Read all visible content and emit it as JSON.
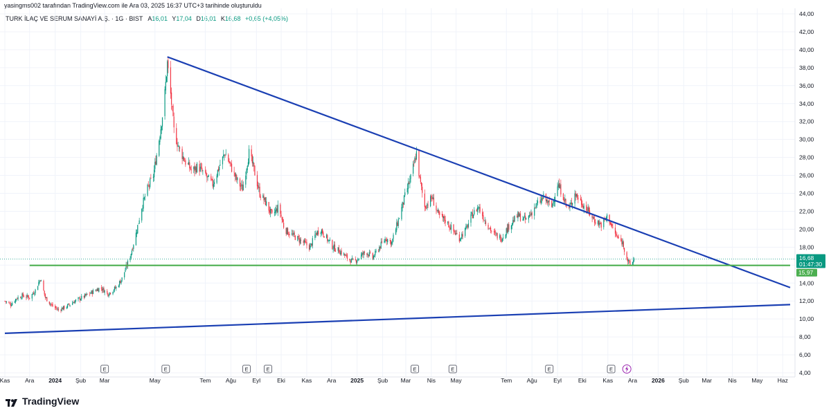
{
  "header": {
    "attribution": "yasingms002 tarafından TradingView.com ile Ara 03, 2025 16:37 UTC+3 tarihinde oluşturuldu",
    "symbol": "TURK İLAÇ VE SERUM SANAYİ A.Ş. · 1G · BIST",
    "open_label": "A",
    "open_value": "16,01",
    "high_label": "Y",
    "high_value": "17,04",
    "low_label": "D",
    "low_value": "16,01",
    "close_label": "K",
    "close_value": "16,68",
    "change": "+0,65 (+4,05%)"
  },
  "logo": {
    "text": "TradingView"
  },
  "colors": {
    "up": "#089981",
    "down": "#f23645",
    "trend": "#1a3fb3",
    "support": "#4caf50",
    "grid": "#f0f3fa"
  },
  "price_tags": {
    "last_price": "16,68",
    "countdown": "01:47:30",
    "support_price": "15,97"
  },
  "event_markers": {
    "earnings_label": "E",
    "earnings_dates": [
      "2024-03-01",
      "2024-05-14",
      "2024-08-20",
      "2024-09-15",
      "2025-03-12",
      "2025-04-27",
      "2025-08-22",
      "2025-11-05"
    ],
    "dividend_icon": "lightning-icon",
    "dividend_date": "2025-11-24"
  },
  "chart_data": {
    "type": "candlestick",
    "yaxis": {
      "ylim": [
        4,
        44
      ],
      "tick_labels": [
        "4,00",
        "6,00",
        "8,00",
        "10,00",
        "12,00",
        "14,00",
        "16,00",
        "18,00",
        "20,00",
        "22,00",
        "24,00",
        "26,00",
        "28,00",
        "30,00",
        "32,00",
        "34,00",
        "36,00",
        "38,00",
        "40,00",
        "42,00",
        "44,00"
      ]
    },
    "xaxis": {
      "xlim": [
        "2023-11-01",
        "2026-06-10"
      ],
      "ticks": [
        {
          "date": "2023-11-01",
          "label": "Kas"
        },
        {
          "date": "2023-12-01",
          "label": "Ara"
        },
        {
          "date": "2024-01-01",
          "label": "2024"
        },
        {
          "date": "2024-02-01",
          "label": "Şub"
        },
        {
          "date": "2024-03-01",
          "label": "Mar"
        },
        {
          "date": "2024-05-01",
          "label": "May"
        },
        {
          "date": "2024-07-01",
          "label": "Tem"
        },
        {
          "date": "2024-08-01",
          "label": "Ağu"
        },
        {
          "date": "2024-09-01",
          "label": "Eyl"
        },
        {
          "date": "2024-10-01",
          "label": "Eki"
        },
        {
          "date": "2024-11-01",
          "label": "Kas"
        },
        {
          "date": "2024-12-01",
          "label": "Ara"
        },
        {
          "date": "2025-01-01",
          "label": "2025"
        },
        {
          "date": "2025-02-01",
          "label": "Şub"
        },
        {
          "date": "2025-03-01",
          "label": "Mar"
        },
        {
          "date": "2025-04-01",
          "label": "Nis"
        },
        {
          "date": "2025-05-01",
          "label": "May"
        },
        {
          "date": "2025-07-01",
          "label": "Tem"
        },
        {
          "date": "2025-08-01",
          "label": "Ağu"
        },
        {
          "date": "2025-09-01",
          "label": "Eyl"
        },
        {
          "date": "2025-10-01",
          "label": "Eki"
        },
        {
          "date": "2025-11-01",
          "label": "Kas"
        },
        {
          "date": "2025-12-01",
          "label": "Ara"
        },
        {
          "date": "2026-01-01",
          "label": "2026"
        },
        {
          "date": "2026-02-01",
          "label": "Şub"
        },
        {
          "date": "2026-03-01",
          "label": "Mar"
        },
        {
          "date": "2026-04-01",
          "label": "Nis"
        },
        {
          "date": "2026-05-01",
          "label": "May"
        },
        {
          "date": "2026-06-01",
          "label": "Haz"
        }
      ]
    },
    "price_path": [
      [
        "2023-11-01",
        12.0
      ],
      [
        "2023-11-08",
        11.6
      ],
      [
        "2023-11-15",
        12.3
      ],
      [
        "2023-11-22",
        12.6
      ],
      [
        "2023-12-01",
        12.4
      ],
      [
        "2023-12-08",
        13.2
      ],
      [
        "2023-12-14",
        14.5
      ],
      [
        "2023-12-20",
        12.4
      ],
      [
        "2023-12-28",
        11.5
      ],
      [
        "2024-01-05",
        11.0
      ],
      [
        "2024-01-15",
        11.4
      ],
      [
        "2024-01-25",
        12.0
      ],
      [
        "2024-02-05",
        12.5
      ],
      [
        "2024-02-15",
        13.0
      ],
      [
        "2024-02-25",
        13.5
      ],
      [
        "2024-03-05",
        12.8
      ],
      [
        "2024-03-15",
        13.5
      ],
      [
        "2024-03-22",
        14.5
      ],
      [
        "2024-04-01",
        17.0
      ],
      [
        "2024-04-08",
        19.5
      ],
      [
        "2024-04-15",
        22.5
      ],
      [
        "2024-04-22",
        24.5
      ],
      [
        "2024-04-29",
        26.0
      ],
      [
        "2024-05-06",
        30.0
      ],
      [
        "2024-05-12",
        34.0
      ],
      [
        "2024-05-16",
        38.5
      ],
      [
        "2024-05-20",
        35.0
      ],
      [
        "2024-05-24",
        31.0
      ],
      [
        "2024-05-30",
        29.0
      ],
      [
        "2024-06-07",
        27.5
      ],
      [
        "2024-06-15",
        26.5
      ],
      [
        "2024-06-22",
        27.0
      ],
      [
        "2024-07-01",
        26.0
      ],
      [
        "2024-07-10",
        25.0
      ],
      [
        "2024-07-18",
        27.0
      ],
      [
        "2024-07-25",
        28.5
      ],
      [
        "2024-08-01",
        27.0
      ],
      [
        "2024-08-08",
        25.5
      ],
      [
        "2024-08-15",
        24.5
      ],
      [
        "2024-08-23",
        28.5
      ],
      [
        "2024-08-28",
        27.0
      ],
      [
        "2024-09-05",
        24.0
      ],
      [
        "2024-09-12",
        23.0
      ],
      [
        "2024-09-20",
        21.5
      ],
      [
        "2024-09-28",
        22.5
      ],
      [
        "2024-10-05",
        20.0
      ],
      [
        "2024-10-12",
        19.5
      ],
      [
        "2024-10-20",
        19.0
      ],
      [
        "2024-10-28",
        18.5
      ],
      [
        "2024-11-05",
        18.0
      ],
      [
        "2024-11-12",
        19.5
      ],
      [
        "2024-11-18",
        20.0
      ],
      [
        "2024-11-25",
        19.0
      ],
      [
        "2024-12-03",
        18.0
      ],
      [
        "2024-12-12",
        17.5
      ],
      [
        "2024-12-20",
        16.8
      ],
      [
        "2024-12-28",
        16.3
      ],
      [
        "2025-01-05",
        17.0
      ],
      [
        "2025-01-12",
        17.5
      ],
      [
        "2025-01-20",
        16.8
      ],
      [
        "2025-01-28",
        18.0
      ],
      [
        "2025-02-05",
        19.0
      ],
      [
        "2025-02-12",
        18.5
      ],
      [
        "2025-02-20",
        21.0
      ],
      [
        "2025-03-01",
        24.0
      ],
      [
        "2025-03-08",
        26.0
      ],
      [
        "2025-03-14",
        28.5
      ],
      [
        "2025-03-18",
        25.5
      ],
      [
        "2025-03-24",
        22.5
      ],
      [
        "2025-04-02",
        23.5
      ],
      [
        "2025-04-10",
        21.5
      ],
      [
        "2025-04-18",
        21.0
      ],
      [
        "2025-04-26",
        20.0
      ],
      [
        "2025-05-05",
        19.0
      ],
      [
        "2025-05-13",
        20.0
      ],
      [
        "2025-05-20",
        21.5
      ],
      [
        "2025-05-28",
        22.5
      ],
      [
        "2025-06-05",
        21.0
      ],
      [
        "2025-06-15",
        19.5
      ],
      [
        "2025-06-25",
        19.0
      ],
      [
        "2025-07-05",
        20.5
      ],
      [
        "2025-07-15",
        21.5
      ],
      [
        "2025-07-25",
        21.0
      ],
      [
        "2025-08-05",
        22.5
      ],
      [
        "2025-08-15",
        23.5
      ],
      [
        "2025-08-25",
        22.5
      ],
      [
        "2025-09-01",
        25.0
      ],
      [
        "2025-09-07",
        24.0
      ],
      [
        "2025-09-14",
        22.0
      ],
      [
        "2025-09-22",
        24.0
      ],
      [
        "2025-09-30",
        23.0
      ],
      [
        "2025-10-08",
        22.0
      ],
      [
        "2025-10-16",
        21.0
      ],
      [
        "2025-10-24",
        20.5
      ],
      [
        "2025-11-01",
        21.5
      ],
      [
        "2025-11-07",
        20.0
      ],
      [
        "2025-11-13",
        19.0
      ],
      [
        "2025-11-19",
        18.5
      ],
      [
        "2025-11-25",
        16.5
      ],
      [
        "2025-11-28",
        16.0
      ],
      [
        "2025-12-03",
        16.68
      ]
    ],
    "trendlines": [
      {
        "name": "Düşen direnç",
        "from": [
          "2024-05-16",
          39.2
        ],
        "to": [
          "2026-06-10",
          13.5
        ],
        "color": "#1a3fb3"
      },
      {
        "name": "Yükselen destek",
        "from": [
          "2023-11-01",
          8.4
        ],
        "to": [
          "2026-06-10",
          11.6
        ],
        "color": "#1a3fb3"
      },
      {
        "name": "Yatay destek",
        "from": [
          "2023-12-01",
          15.97
        ],
        "to": [
          "2026-06-10",
          15.97
        ],
        "color": "#4caf50"
      }
    ],
    "last_price": 16.68,
    "support_level": 15.97
  }
}
